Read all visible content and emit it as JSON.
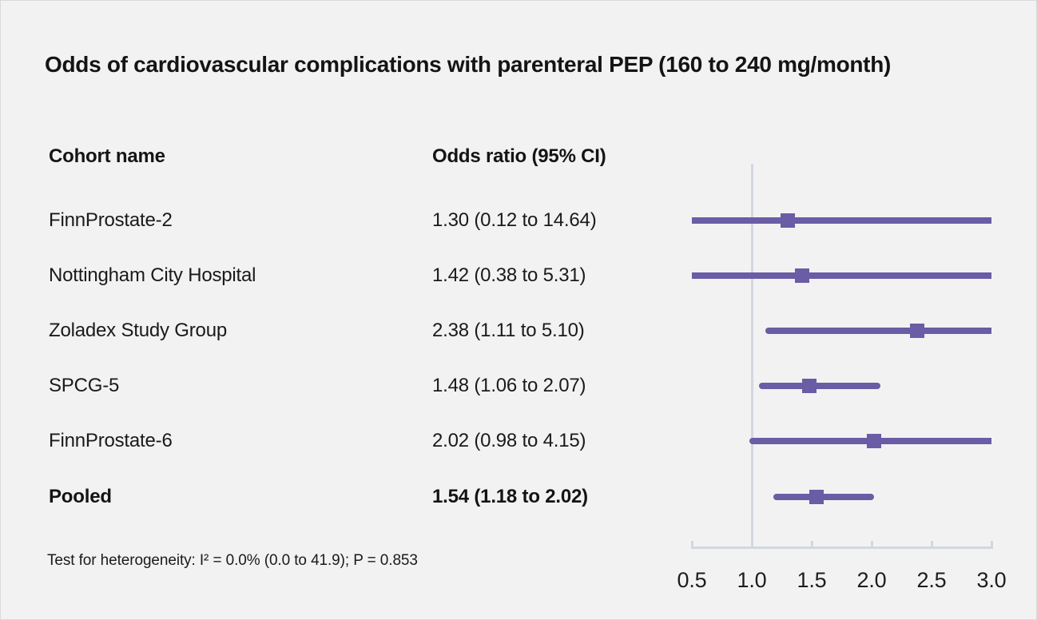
{
  "figure": {
    "title": "Odds of cardiovascular complications with parenteral PEP (160 to 240 mg/month)",
    "columns": {
      "cohort": "Cohort name",
      "odds": "Odds ratio (95% CI)"
    },
    "footnote": "Test for heterogeneity: I² = 0.0% (0.0 to 41.9); P = 0.853"
  },
  "chart_data": {
    "type": "forest",
    "title": "Odds of cardiovascular complications with parenteral PEP (160 to 240 mg/month)",
    "xlabel": "Odds ratio",
    "x_axis": {
      "range": [
        0.5,
        3.0
      ],
      "ticks": [
        0.5,
        1.0,
        1.5,
        2.0,
        2.5,
        3.0
      ],
      "tick_labels": [
        "0.5",
        "1.0",
        "1.5",
        "2.0",
        "2.5",
        "3.0"
      ],
      "reference_line": 1.0
    },
    "rows": [
      {
        "label": "FinnProstate-2",
        "display": "1.30 (0.12 to 14.64)",
        "or": 1.3,
        "ci_low": 0.12,
        "ci_high": 14.64,
        "bold": false
      },
      {
        "label": "Nottingham City Hospital",
        "display": "1.42 (0.38 to 5.31)",
        "or": 1.42,
        "ci_low": 0.38,
        "ci_high": 5.31,
        "bold": false
      },
      {
        "label": "Zoladex Study Group",
        "display": "2.38 (1.11 to 5.10)",
        "or": 2.38,
        "ci_low": 1.11,
        "ci_high": 5.1,
        "bold": false
      },
      {
        "label": "SPCG-5",
        "display": "1.48 (1.06 to 2.07)",
        "or": 1.48,
        "ci_low": 1.06,
        "ci_high": 2.07,
        "bold": false
      },
      {
        "label": "FinnProstate-6",
        "display": "2.02 (0.98 to 4.15)",
        "or": 2.02,
        "ci_low": 0.98,
        "ci_high": 4.15,
        "bold": false
      },
      {
        "label": "Pooled",
        "display": "1.54 (1.18 to 2.02)",
        "or": 1.54,
        "ci_low": 1.18,
        "ci_high": 2.02,
        "bold": true
      }
    ],
    "heterogeneity_note": "Test for heterogeneity: I² = 0.0% (0.0 to 41.9); P = 0.853",
    "legend": "none",
    "grid": false,
    "colors": {
      "marker": "#6A5CA5",
      "axis": "#D3D7E0",
      "background": "#F2F2F2",
      "text": "#1A1A1A"
    }
  }
}
